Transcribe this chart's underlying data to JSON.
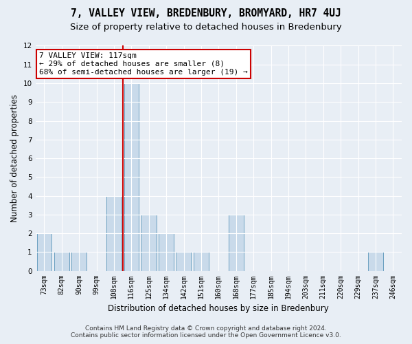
{
  "title": "7, VALLEY VIEW, BREDENBURY, BROMYARD, HR7 4UJ",
  "subtitle": "Size of property relative to detached houses in Bredenbury",
  "xlabel": "Distribution of detached houses by size in Bredenbury",
  "ylabel": "Number of detached properties",
  "categories": [
    "73sqm",
    "82sqm",
    "90sqm",
    "99sqm",
    "108sqm",
    "116sqm",
    "125sqm",
    "134sqm",
    "142sqm",
    "151sqm",
    "160sqm",
    "168sqm",
    "177sqm",
    "185sqm",
    "194sqm",
    "203sqm",
    "211sqm",
    "220sqm",
    "229sqm",
    "237sqm",
    "246sqm"
  ],
  "values": [
    2,
    1,
    1,
    0,
    4,
    10,
    3,
    2,
    1,
    1,
    0,
    3,
    0,
    0,
    0,
    0,
    0,
    0,
    0,
    1,
    0
  ],
  "bar_color": "#c9daea",
  "bar_edgecolor": "#6a9fc0",
  "vline_x_index": 5,
  "vline_color": "#cc0000",
  "ylim": [
    0,
    12
  ],
  "yticks": [
    0,
    1,
    2,
    3,
    4,
    5,
    6,
    7,
    8,
    9,
    10,
    11,
    12
  ],
  "annotation_line1": "7 VALLEY VIEW: 117sqm",
  "annotation_line2": "← 29% of detached houses are smaller (8)",
  "annotation_line3": "68% of semi-detached houses are larger (19) →",
  "annotation_box_color": "#ffffff",
  "annotation_box_edgecolor": "#cc0000",
  "footer_line1": "Contains HM Land Registry data © Crown copyright and database right 2024.",
  "footer_line2": "Contains public sector information licensed under the Open Government Licence v3.0.",
  "bg_color": "#e8eef5",
  "plot_bg_color": "#e8eef5",
  "grid_color": "#ffffff",
  "title_fontsize": 10.5,
  "subtitle_fontsize": 9.5,
  "label_fontsize": 8.5,
  "tick_fontsize": 7,
  "footer_fontsize": 6.5,
  "annotation_fontsize": 8
}
